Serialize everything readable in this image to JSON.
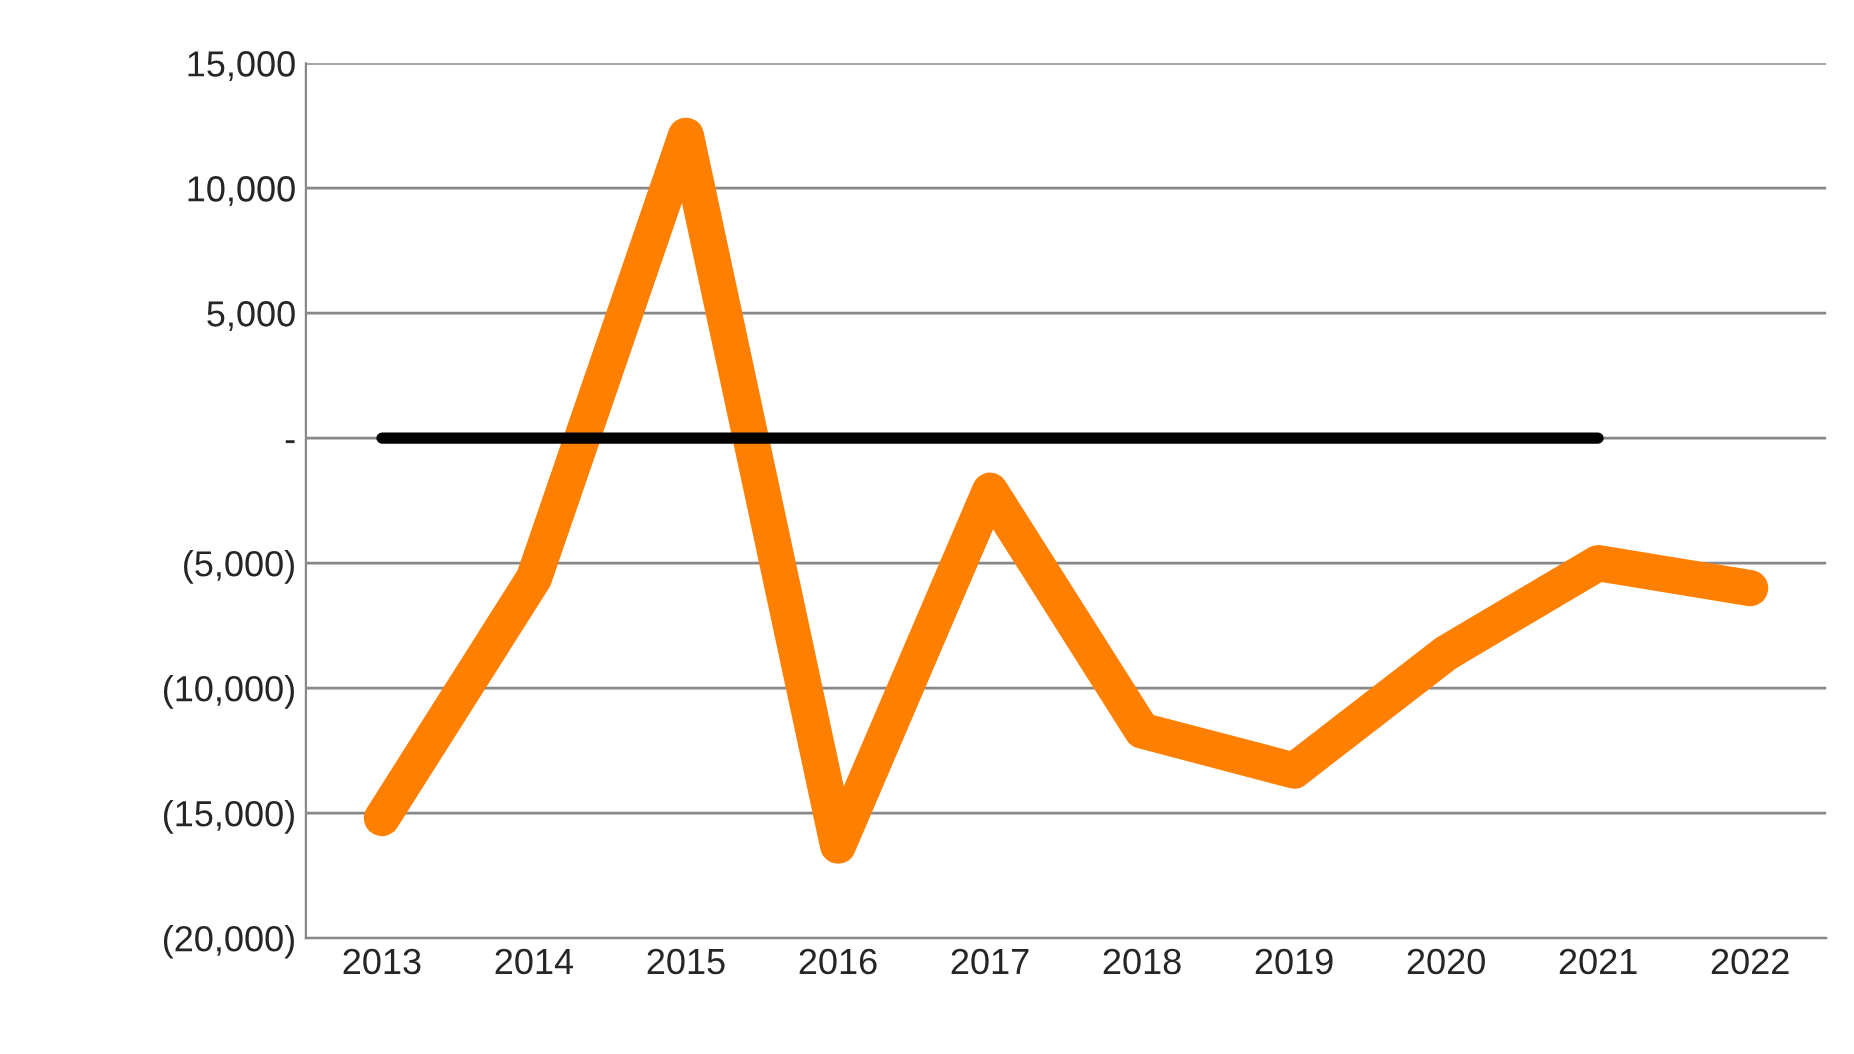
{
  "chart_data": {
    "type": "line",
    "categories": [
      "2013",
      "2014",
      "2015",
      "2016",
      "2017",
      "2018",
      "2019",
      "2020",
      "2021",
      "2022"
    ],
    "series": [
      {
        "color": "#ff7f00",
        "values": [
          -15200,
          -5600,
          12100,
          -16300,
          -2100,
          -11700,
          -13300,
          -8600,
          -5000,
          -6000
        ]
      },
      {
        "color": "#000000",
        "values": [
          0,
          0,
          0,
          0,
          0,
          0,
          0,
          0,
          0,
          null
        ]
      }
    ],
    "ylim": [
      -20000,
      15000
    ],
    "yticks": [
      {
        "value": -20000,
        "label": "(20,000)"
      },
      {
        "value": -15000,
        "label": "(15,000)"
      },
      {
        "value": -10000,
        "label": "(10,000)"
      },
      {
        "value": -5000,
        "label": "(5,000)"
      },
      {
        "value": 0,
        "label": "-"
      },
      {
        "value": 5000,
        "label": "5,000"
      },
      {
        "value": 10000,
        "label": "10,000"
      },
      {
        "value": 15000,
        "label": "15,000"
      }
    ],
    "grid": "y",
    "marker": "none",
    "line_style": "solid",
    "legend": false
  }
}
